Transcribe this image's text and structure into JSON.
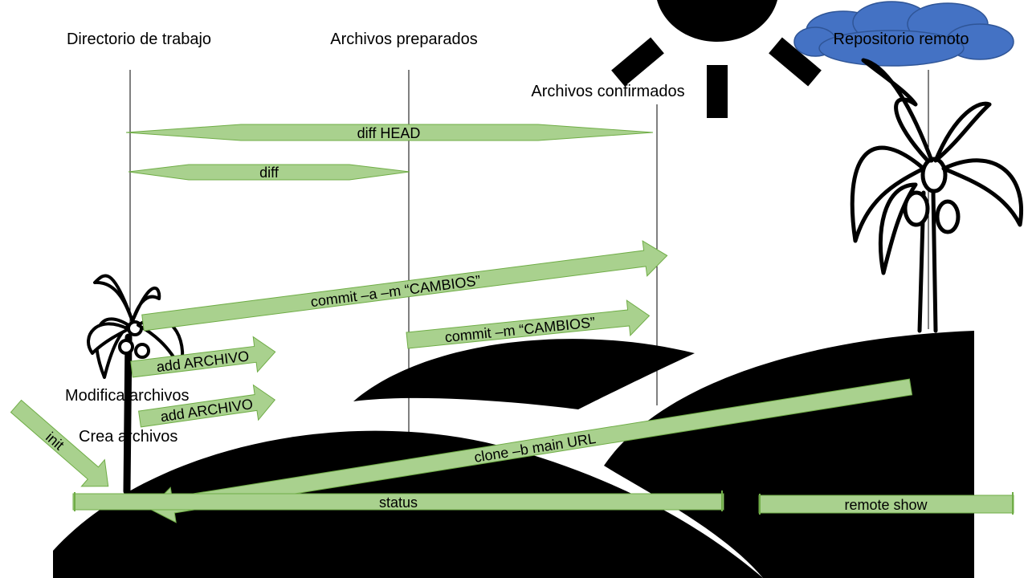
{
  "colors": {
    "arrow_fill": "#a9d18e",
    "arrow_stroke": "#70ad47",
    "silhouette": "#000000",
    "cloud_fill": "#4472c4",
    "cloud_stroke": "#2f5597"
  },
  "headers": {
    "working_dir": "Directorio de trabajo",
    "staged": "Archivos preparados",
    "committed": "Archivos confirmados",
    "remote": "Repositorio remoto"
  },
  "labels": {
    "modify_files": "Modifica archivos",
    "create_files": "Crea archivos"
  },
  "commands": {
    "diff_head": "diff HEAD",
    "diff": "diff",
    "commit_a": "commit –a –m “CAMBIOS”",
    "add_1": "add ARCHIVO",
    "commit_m": "commit –m “CAMBIOS”",
    "add_2": "add ARCHIVO",
    "init": "init",
    "clone": "clone –b main URL",
    "status": "status",
    "remote_show": "remote show"
  },
  "icons": [
    "sun-icon",
    "cloud-icon",
    "palm-tree-icon"
  ]
}
